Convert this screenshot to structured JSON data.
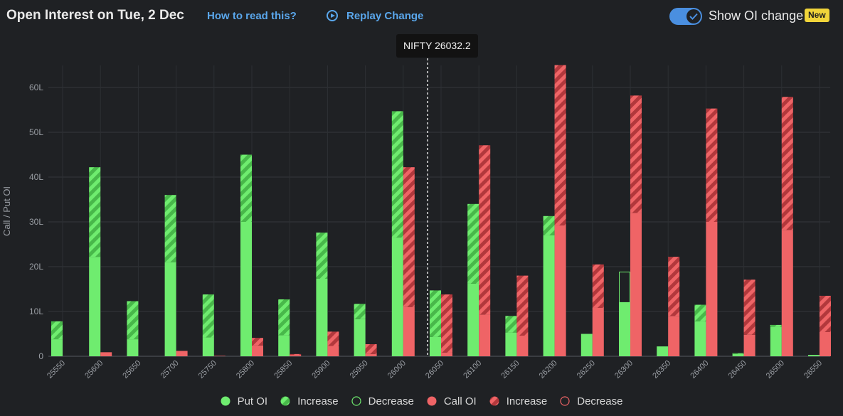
{
  "header": {
    "title": "Open Interest on Tue, 2 Dec",
    "how_to_read": "How to read this?",
    "replay": "Replay Change",
    "toggle_label": "Show OI change",
    "badge": "New"
  },
  "spot_label": "NIFTY 26032.2",
  "colors": {
    "put": "#6fec6f",
    "put_dark": "#48b84a",
    "call": "#ef6466",
    "call_dark": "#b2383c",
    "link": "#5aa7ec",
    "badge": "#f0d43a"
  },
  "chart_data": {
    "type": "bar",
    "ylabel": "Call / Put OI",
    "ylim": [
      0,
      65
    ],
    "yticks": [
      0,
      10,
      20,
      30,
      40,
      50,
      60
    ],
    "ytick_labels": [
      "0",
      "10L",
      "20L",
      "30L",
      "40L",
      "50L",
      "60L"
    ],
    "categories": [
      "25550",
      "25600",
      "25650",
      "25700",
      "25750",
      "25800",
      "25850",
      "25900",
      "25950",
      "26000",
      "26050",
      "26100",
      "26150",
      "26200",
      "26250",
      "26300",
      "26350",
      "26400",
      "26450",
      "26500",
      "26550"
    ],
    "spot": 26032.2,
    "unit": "L",
    "series": [
      {
        "name": "Put OI",
        "base": [
          3.8,
          22.2,
          3.8,
          21.0,
          4.2,
          30.0,
          4.7,
          17.3,
          8.3,
          26.5,
          4.3,
          16.2,
          5.3,
          27.0,
          5.0,
          12.0,
          2.2,
          7.8,
          0.5,
          6.6,
          0.3
        ],
        "increase": [
          4.0,
          20.0,
          8.5,
          15.0,
          9.6,
          15.0,
          8.0,
          10.3,
          3.4,
          28.2,
          10.4,
          17.8,
          3.7,
          4.3,
          0,
          0,
          0,
          3.7,
          0.2,
          0.4,
          0
        ],
        "decrease": [
          0,
          0,
          0,
          0,
          0,
          0,
          0,
          0,
          0,
          0,
          0,
          0,
          0,
          0,
          0,
          6.8,
          0,
          0,
          0,
          0,
          0
        ]
      },
      {
        "name": "Call OI",
        "base": [
          0,
          0.9,
          0,
          1.2,
          0.1,
          2.4,
          0.3,
          2.3,
          0.5,
          11.0,
          0.8,
          9.3,
          4.6,
          29.2,
          10.8,
          32.0,
          9.0,
          30.0,
          4.8,
          28.2,
          5.4
        ],
        "increase": [
          0,
          0,
          0,
          0,
          0,
          1.7,
          0.2,
          3.2,
          2.2,
          31.2,
          13.0,
          37.8,
          13.4,
          35.8,
          9.7,
          26.2,
          13.2,
          25.3,
          12.3,
          29.7,
          8.1
        ],
        "decrease": [
          0,
          0,
          0,
          0,
          0,
          0,
          0,
          0,
          0,
          0,
          0,
          0,
          0,
          0,
          0,
          0,
          0,
          0,
          0,
          0,
          0
        ]
      }
    ],
    "legend": [
      {
        "key": "put",
        "label": "Put OI"
      },
      {
        "key": "put_increase",
        "label": "Increase"
      },
      {
        "key": "put_decrease",
        "label": "Decrease"
      },
      {
        "key": "call",
        "label": "Call OI"
      },
      {
        "key": "call_increase",
        "label": "Increase"
      },
      {
        "key": "call_decrease",
        "label": "Decrease"
      }
    ]
  }
}
